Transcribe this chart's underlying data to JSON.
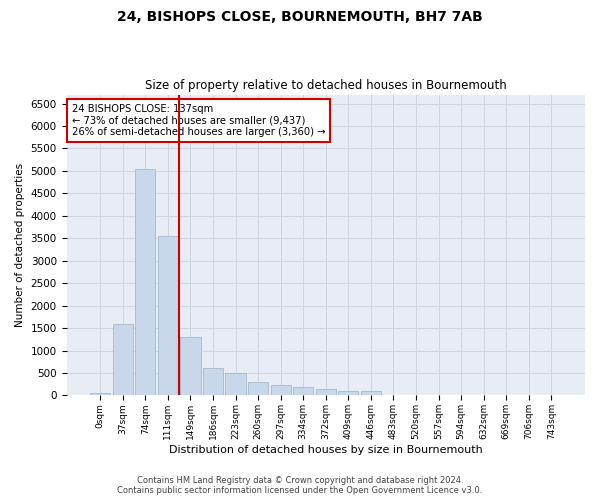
{
  "title": "24, BISHOPS CLOSE, BOURNEMOUTH, BH7 7AB",
  "subtitle": "Size of property relative to detached houses in Bournemouth",
  "xlabel": "Distribution of detached houses by size in Bournemouth",
  "ylabel": "Number of detached properties",
  "bin_labels": [
    "0sqm",
    "37sqm",
    "74sqm",
    "111sqm",
    "149sqm",
    "186sqm",
    "223sqm",
    "260sqm",
    "297sqm",
    "334sqm",
    "372sqm",
    "409sqm",
    "446sqm",
    "483sqm",
    "520sqm",
    "557sqm",
    "594sqm",
    "632sqm",
    "669sqm",
    "706sqm",
    "743sqm"
  ],
  "bar_values": [
    50,
    1600,
    5050,
    3550,
    1300,
    620,
    490,
    290,
    240,
    190,
    140,
    95,
    90,
    0,
    0,
    0,
    0,
    0,
    0,
    0,
    0
  ],
  "bar_color": "#c8d8ea",
  "bar_edge_color": "#9ab0c8",
  "vline_color": "#cc0000",
  "annotation_text": "24 BISHOPS CLOSE: 137sqm\n← 73% of detached houses are smaller (9,437)\n26% of semi-detached houses are larger (3,360) →",
  "annotation_box_color": "#ffffff",
  "annotation_box_edgecolor": "#cc0000",
  "ylim": [
    0,
    6700
  ],
  "yticks": [
    0,
    500,
    1000,
    1500,
    2000,
    2500,
    3000,
    3500,
    4000,
    4500,
    5000,
    5500,
    6000,
    6500
  ],
  "grid_color": "#cdd5e3",
  "bg_color": "#e8edf5",
  "footer_line1": "Contains HM Land Registry data © Crown copyright and database right 2024.",
  "footer_line2": "Contains public sector information licensed under the Open Government Licence v3.0."
}
